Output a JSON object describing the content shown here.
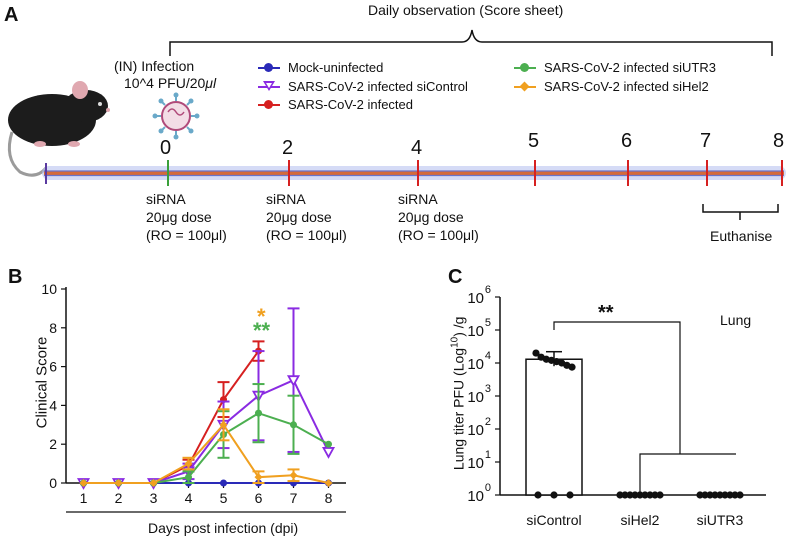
{
  "panel_a": {
    "letter": "A",
    "observation_label": "Daily observation (Score sheet)",
    "infection_line1": "(IN) Infection",
    "infection_line2": "10^4 PFU/20",
    "infection_unit": "μl",
    "timeline_days": [
      "0",
      "2",
      "4",
      "5",
      "6",
      "7",
      "8"
    ],
    "sirna_doses": [
      {
        "line1": "siRNA",
        "line2": "20μg dose",
        "line3": "(RO = 100μl)"
      },
      {
        "line1": "siRNA",
        "line2": "20μg dose",
        "line3": "(RO = 100μl)"
      },
      {
        "line1": "siRNA",
        "line2": "20μg dose",
        "line3": "(RO = 100μl)"
      }
    ],
    "euthanise_label": "Euthanise",
    "legend": [
      {
        "label": "Mock-uninfected",
        "color": "#2a2ab8",
        "marker": "circle"
      },
      {
        "label": "SARS-CoV-2 infected siControl",
        "color": "#8a2be2",
        "marker": "triangle-down"
      },
      {
        "label": "SARS-CoV-2 infected",
        "color": "#d62020",
        "marker": "circle"
      },
      {
        "label": "SARS-CoV-2 infected siUTR3",
        "color": "#4caf50",
        "marker": "circle"
      },
      {
        "label": "SARS-CoV-2 infected siHel2",
        "color": "#f0a020",
        "marker": "diamond"
      }
    ]
  },
  "panel_b": {
    "letter": "B",
    "sig_orange": "*",
    "sig_green": "**"
  },
  "panel_c": {
    "letter": "C",
    "sig": "**",
    "tissue_label": "Lung"
  },
  "chart_data": [
    {
      "type": "line",
      "title": "",
      "xlabel": "Days post infection (dpi)",
      "ylabel": "Clinical Score",
      "x": [
        1,
        2,
        3,
        4,
        5,
        6,
        7,
        8
      ],
      "xticks": [
        "1",
        "2",
        "3",
        "4",
        "5",
        "6",
        "7",
        "8"
      ],
      "yticks": [
        "0",
        "2",
        "4",
        "6",
        "8",
        "10"
      ],
      "ylim": [
        0,
        10
      ],
      "series": [
        {
          "name": "Mock-uninfected",
          "color": "#2a2ab8",
          "marker": "circle",
          "x": [
            1,
            2,
            3,
            4,
            5,
            6,
            7,
            8
          ],
          "y": [
            0,
            0,
            0,
            0,
            0,
            0,
            0,
            0
          ],
          "err": [
            0,
            0,
            0,
            0,
            0,
            0,
            0,
            0
          ]
        },
        {
          "name": "SARS-CoV-2 infected",
          "color": "#d62020",
          "marker": "circle",
          "x": [
            1,
            2,
            3,
            4,
            5,
            6
          ],
          "y": [
            0,
            0,
            0,
            0.9,
            4.3,
            6.8
          ],
          "err": [
            0,
            0,
            0,
            0.3,
            0.9,
            0.5
          ]
        },
        {
          "name": "SARS-CoV-2 infected siControl",
          "color": "#8a2be2",
          "marker": "triangle-down",
          "x": [
            1,
            2,
            3,
            4,
            5,
            6,
            7,
            8
          ],
          "y": [
            0,
            0,
            0,
            0.6,
            3.0,
            4.5,
            5.3,
            1.6
          ],
          "err": [
            0,
            0,
            0,
            0.4,
            1.2,
            2.3,
            3.7,
            0
          ]
        },
        {
          "name": "SARS-CoV-2 infected siUTR3",
          "color": "#4caf50",
          "marker": "circle",
          "x": [
            1,
            2,
            3,
            4,
            5,
            6,
            7,
            8
          ],
          "y": [
            0,
            0,
            0,
            0.3,
            2.5,
            3.6,
            3.0,
            2.0
          ],
          "err": [
            0,
            0,
            0,
            0.3,
            1.2,
            1.5,
            1.5,
            0
          ]
        },
        {
          "name": "SARS-CoV-2 infected siHel2",
          "color": "#f0a020",
          "marker": "diamond",
          "x": [
            1,
            2,
            3,
            4,
            5,
            6,
            7,
            8
          ],
          "y": [
            0,
            0,
            0,
            1.0,
            3.0,
            0.3,
            0.4,
            0.0
          ],
          "err": [
            0,
            0,
            0,
            0.3,
            0.8,
            0.3,
            0.3,
            0
          ]
        }
      ]
    },
    {
      "type": "bar",
      "title": "",
      "xlabel": "",
      "ylabel": "Lung titer PFU (Log10)/g",
      "ylabel_parts": {
        "pre": "Lung titer PFU (Log",
        "sup": "10",
        "post": ") /g"
      },
      "categories": [
        "siControl",
        "siHel2",
        "siUTR3"
      ],
      "values": [
        13000,
        0,
        0
      ],
      "log_exponents": [
        0,
        1,
        2,
        3,
        4,
        5,
        6
      ],
      "ytick_base": "10",
      "ylim_log10": [
        0,
        6
      ],
      "points": {
        "siControl": [
          20000,
          15000,
          13000,
          12000,
          11000,
          10000,
          8500,
          7500,
          1,
          1,
          1
        ],
        "siHel2": [
          1,
          1,
          1,
          1,
          1,
          1,
          1,
          1,
          1
        ],
        "siUTR3": [
          1,
          1,
          1,
          1,
          1,
          1,
          1,
          1,
          1
        ]
      }
    }
  ]
}
